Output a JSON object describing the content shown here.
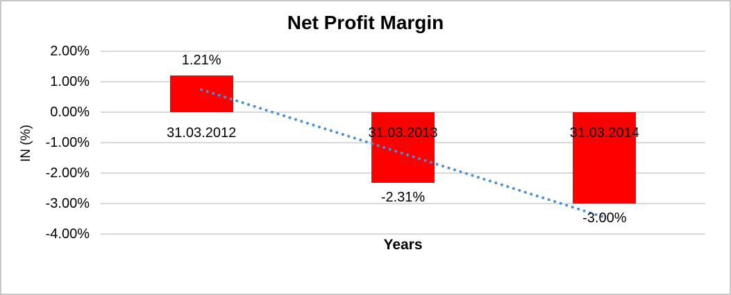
{
  "chart_data": {
    "type": "bar",
    "title": "Net Profit Margin",
    "xlabel": "Years",
    "ylabel": "IN (%)",
    "categories": [
      "31.03.2012",
      "31.03.2013",
      "31.03.2014"
    ],
    "values": [
      1.21,
      -2.31,
      -3.0
    ],
    "value_labels": [
      "1.21%",
      "-2.31%",
      "-3.00%"
    ],
    "yticks": [
      "2.00%",
      "1.00%",
      "0.00%",
      "-1.00%",
      "-2.00%",
      "-3.00%",
      "-4.00%"
    ],
    "ytick_values": [
      2,
      1,
      0,
      -1,
      -2,
      -3,
      -4
    ],
    "ylim": [
      -4,
      2
    ],
    "grid": true,
    "legend": "none",
    "bar_color": "#ff0000",
    "gridline_color": "#d9d9d9",
    "border_color": "#c8c8c8",
    "text_color": "#000000",
    "trendline": {
      "style": "dotted",
      "color": "#4a8fd3",
      "start_category_index": 0,
      "end_category_index": 2,
      "start_value": 0.74,
      "end_value": -3.45
    }
  }
}
